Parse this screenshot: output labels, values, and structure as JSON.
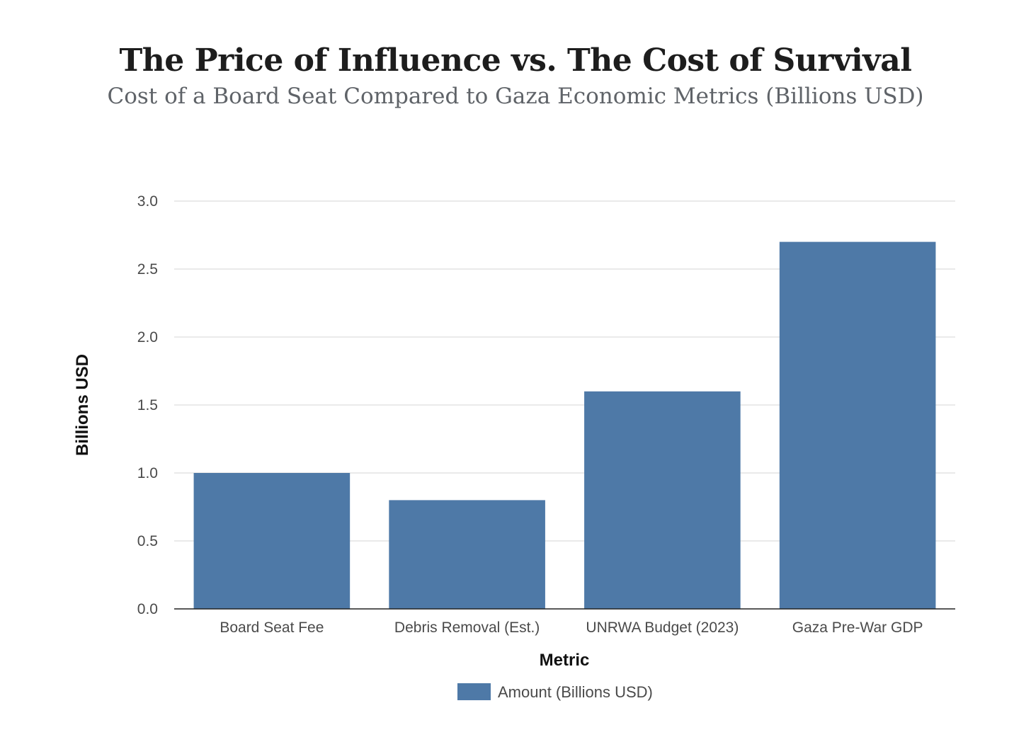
{
  "chart_data": {
    "type": "bar",
    "title": "The Price of Influence vs. The Cost of Survival",
    "subtitle": "Cost of a Board Seat Compared to Gaza Economic Metrics (Billions USD)",
    "xlabel": "Metric",
    "ylabel": "Billions USD",
    "categories": [
      "Board Seat Fee",
      "Debris Removal (Est.)",
      "UNRWA Budget (2023)",
      "Gaza Pre-War GDP"
    ],
    "series": [
      {
        "name": "Amount (Billions USD)",
        "values": [
          1.0,
          0.8,
          1.6,
          2.7
        ],
        "color": "#4e79a7"
      }
    ],
    "ylim": [
      0,
      3
    ],
    "yticks": [
      "0.0",
      "0.5",
      "1.0",
      "1.5",
      "2.0",
      "2.5",
      "3.0"
    ],
    "grid": true,
    "legend_position": "bottom-center"
  }
}
